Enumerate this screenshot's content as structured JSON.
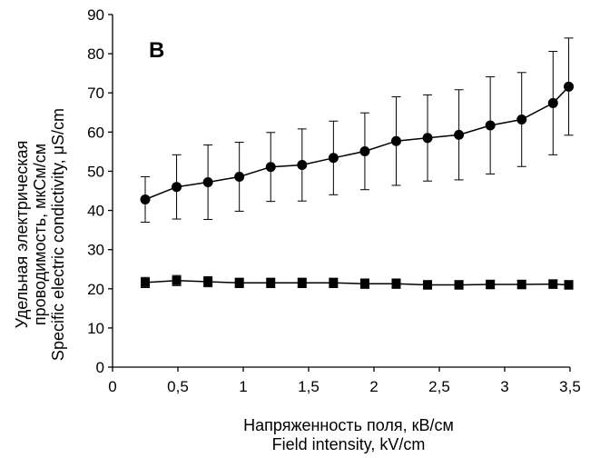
{
  "chart_data": {
    "type": "line",
    "panel_label": "B",
    "xlabel": [
      "Напряженность поля, кВ/см",
      "Field intensity, kV/cm"
    ],
    "ylabel": [
      "Удельная электрическая",
      "проводимость, мкСм/см",
      "Specific electric condictivity, μS/cm"
    ],
    "xlim": [
      0,
      3.5
    ],
    "ylim": [
      0,
      90
    ],
    "x_ticks": [
      "0",
      "0,5",
      "1",
      "1,5",
      "2",
      "2,5",
      "3",
      "3,5"
    ],
    "y_ticks": [
      "0",
      "10",
      "20",
      "30",
      "40",
      "50",
      "60",
      "70",
      "80",
      "90"
    ],
    "grid": false,
    "x": [
      0.25,
      0.49,
      0.73,
      0.97,
      1.21,
      1.45,
      1.69,
      1.93,
      2.17,
      2.41,
      2.65,
      2.89,
      3.13,
      3.37,
      3.49
    ],
    "series": [
      {
        "marker": "circle",
        "color": "#000000",
        "values": [
          42.8,
          46.0,
          47.2,
          48.6,
          51.1,
          51.6,
          53.4,
          55.1,
          57.7,
          58.5,
          59.3,
          61.7,
          63.2,
          67.4,
          71.6
        ],
        "error": [
          5.8,
          8.2,
          9.5,
          8.8,
          8.8,
          9.2,
          9.4,
          9.8,
          11.3,
          11.0,
          11.5,
          12.4,
          12.0,
          13.2,
          12.4
        ]
      },
      {
        "marker": "square",
        "color": "#000000",
        "values": [
          21.6,
          22.1,
          21.8,
          21.5,
          21.5,
          21.5,
          21.5,
          21.3,
          21.3,
          21.0,
          21.0,
          21.1,
          21.1,
          21.2,
          21.0
        ],
        "error": [
          1.3,
          1.3,
          1.3,
          1.2,
          1.2,
          1.2,
          1.2,
          1.2,
          1.2,
          1.1,
          1.1,
          1.1,
          1.1,
          1.1,
          1.1
        ]
      }
    ]
  }
}
